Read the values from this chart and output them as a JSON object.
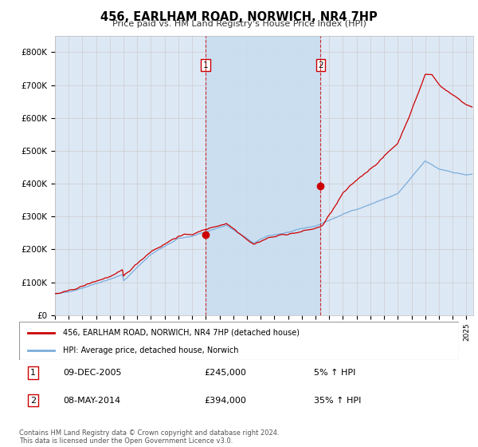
{
  "title": "456, EARLHAM ROAD, NORWICH, NR4 7HP",
  "subtitle": "Price paid vs. HM Land Registry's House Price Index (HPI)",
  "background_color": "#ffffff",
  "plot_bg_color": "#dde8f5",
  "shaded_region_color": "#c8ddf0",
  "grid_color": "#cccccc",
  "line1_color": "#cc0000",
  "line2_color": "#7aaddb",
  "line1_label": "456, EARLHAM ROAD, NORWICH, NR4 7HP (detached house)",
  "line2_label": "HPI: Average price, detached house, Norwich",
  "ylim": [
    0,
    850000
  ],
  "yticks": [
    0,
    100000,
    200000,
    300000,
    400000,
    500000,
    600000,
    700000,
    800000
  ],
  "ytick_labels": [
    "£0",
    "£100K",
    "£200K",
    "£300K",
    "£400K",
    "£500K",
    "£600K",
    "£700K",
    "£800K"
  ],
  "transaction1": {
    "label": "1",
    "date": "09-DEC-2005",
    "price": 245000,
    "hpi_pct": "5%",
    "direction": "↑",
    "x_year": 2006.0
  },
  "transaction2": {
    "label": "2",
    "date": "08-MAY-2014",
    "price": 394000,
    "hpi_pct": "35%",
    "direction": "↑",
    "x_year": 2014.37
  },
  "footer": "Contains HM Land Registry data © Crown copyright and database right 2024.\nThis data is licensed under the Open Government Licence v3.0.",
  "xlim_start": 1995,
  "xlim_end": 2025.5
}
